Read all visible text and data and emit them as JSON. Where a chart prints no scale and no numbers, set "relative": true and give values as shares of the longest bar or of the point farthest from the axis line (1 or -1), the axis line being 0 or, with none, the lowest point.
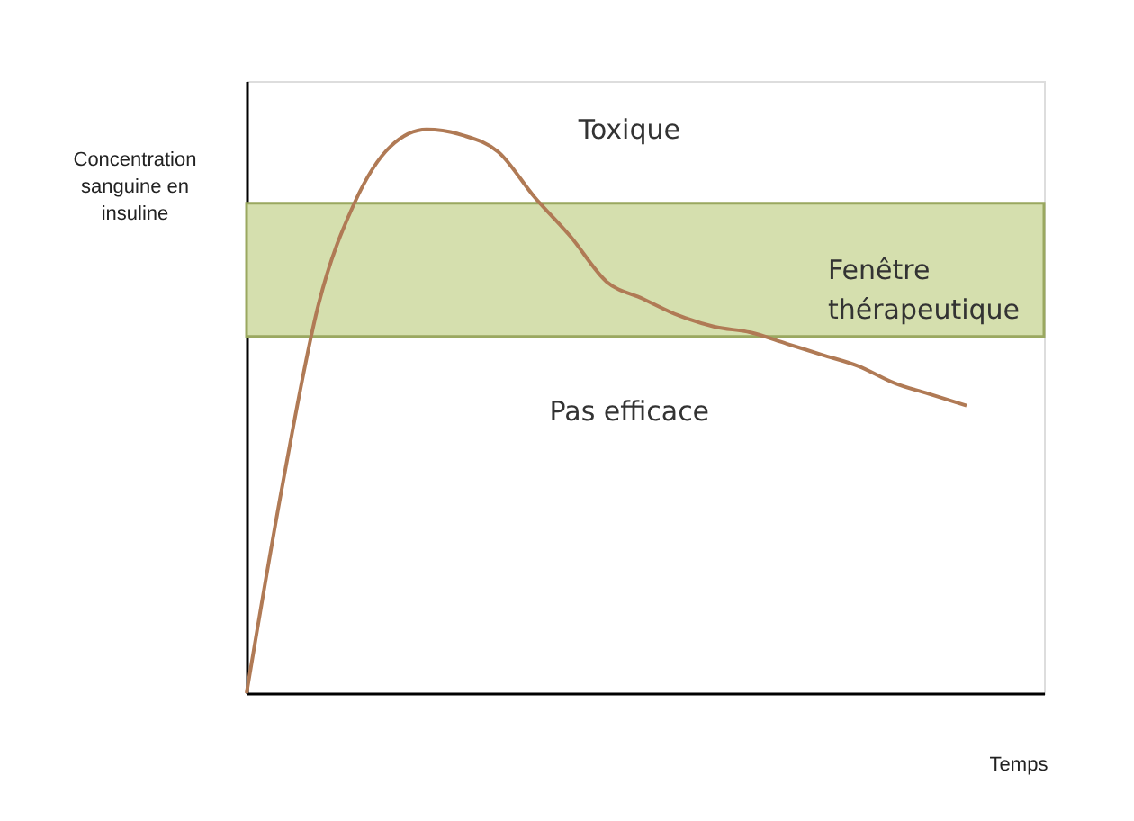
{
  "chart_data": {
    "type": "line",
    "relative": true,
    "xlabel": "Temps",
    "ylabel": "Concentration sanguine en insuline",
    "categories": [
      null,
      null,
      null,
      null,
      null,
      null,
      null,
      null,
      null,
      null,
      null,
      null,
      null,
      null,
      null,
      null,
      null,
      null,
      null,
      null,
      null
    ],
    "series": [
      {
        "color": "#b07a55",
        "values": [
          0,
          0.37,
          0.69,
          0.87,
          0.97,
          1.0,
          0.99,
          0.96,
          0.88,
          0.81,
          0.73,
          0.7,
          0.67,
          0.65,
          0.64,
          0.62,
          0.6,
          0.58,
          0.55,
          0.53,
          0.51
        ]
      }
    ],
    "bands": [
      {
        "axis": "y",
        "from": 0.633,
        "to": 0.869,
        "label": "Fenêtre thérapeutique",
        "color": "#d5dfae"
      }
    ],
    "annotations": [
      "Toxique",
      "Pas efficace"
    ],
    "grid": false,
    "marker": "none",
    "line_style": "solid",
    "tick_labels": false
  }
}
